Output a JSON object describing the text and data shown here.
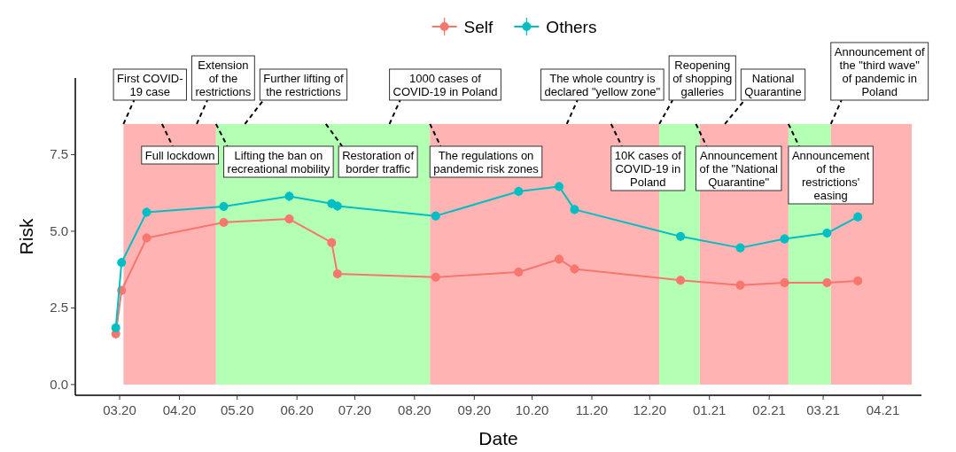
{
  "chart_data": {
    "type": "line",
    "xlabel": "Date",
    "ylabel": "Risk",
    "x": [
      "2020-02-28",
      "2020-03-02",
      "2020-03-15",
      "2020-04-24",
      "2020-05-28",
      "2020-06-19",
      "2020-06-22",
      "2020-08-12",
      "2020-09-24",
      "2020-10-15",
      "2020-10-23",
      "2020-12-17",
      "2021-01-17",
      "2021-02-09",
      "2021-03-03",
      "2021-03-19"
    ],
    "series": [
      {
        "name": "Self",
        "color": "#f8766d",
        "values": [
          1.65,
          3.07,
          4.78,
          5.29,
          5.4,
          4.63,
          3.61,
          3.5,
          3.67,
          4.09,
          3.77,
          3.4,
          3.24,
          3.32,
          3.32,
          3.38
        ],
        "errors": [
          0.15,
          0.15,
          0.15,
          0.15,
          0.15,
          0.15,
          0.15,
          0.15,
          0.15,
          0.15,
          0.15,
          0.15,
          0.15,
          0.15,
          0.15,
          0.15
        ]
      },
      {
        "name": "Others",
        "color": "#00bfc4",
        "values": [
          1.85,
          3.98,
          5.62,
          5.81,
          6.14,
          5.9,
          5.82,
          5.5,
          6.3,
          6.46,
          5.71,
          4.83,
          4.46,
          4.75,
          4.94,
          5.47
        ],
        "errors": [
          0.15,
          0.15,
          0.15,
          0.15,
          0.15,
          0.15,
          0.15,
          0.15,
          0.15,
          0.15,
          0.15,
          0.15,
          0.15,
          0.15,
          0.15,
          0.15
        ]
      }
    ],
    "xlim": [
      "2020-02-07",
      "2021-04-21"
    ],
    "xticks": [
      {
        "value": "2020-03-01",
        "label": "03.20"
      },
      {
        "value": "2020-04-01",
        "label": "04.20"
      },
      {
        "value": "2020-05-01",
        "label": "05.20"
      },
      {
        "value": "2020-06-01",
        "label": "06.20"
      },
      {
        "value": "2020-07-01",
        "label": "07.20"
      },
      {
        "value": "2020-08-01",
        "label": "08.20"
      },
      {
        "value": "2020-09-01",
        "label": "09.20"
      },
      {
        "value": "2020-10-01",
        "label": "10.20"
      },
      {
        "value": "2020-11-01",
        "label": "11.20"
      },
      {
        "value": "2020-12-01",
        "label": "12.20"
      },
      {
        "value": "2021-01-01",
        "label": "01.21"
      },
      {
        "value": "2021-02-01",
        "label": "02.21"
      },
      {
        "value": "2021-03-01",
        "label": "03.21"
      },
      {
        "value": "2021-04-01",
        "label": "04.21"
      }
    ],
    "ylim": [
      -0.35,
      10
    ],
    "yticks": [
      {
        "value": 0,
        "label": "0.0"
      },
      {
        "value": 2.5,
        "label": "2.5"
      },
      {
        "value": 5,
        "label": "5.0"
      },
      {
        "value": 7.5,
        "label": "7.5"
      }
    ],
    "grid": false,
    "legend": "top",
    "marker": "circle",
    "line_style": "solid",
    "bands": [
      {
        "axis": "x",
        "from": "2020-03-03",
        "to": "2020-04-20",
        "color": "#ffb3b3"
      },
      {
        "axis": "x",
        "from": "2020-04-20",
        "to": "2020-08-09",
        "color": "#b3ffb3"
      },
      {
        "axis": "x",
        "from": "2020-08-09",
        "to": "2020-12-06",
        "color": "#ffb3b3"
      },
      {
        "axis": "x",
        "from": "2020-12-06",
        "to": "2020-12-27",
        "color": "#b3ffb3"
      },
      {
        "axis": "x",
        "from": "2020-12-27",
        "to": "2021-02-11",
        "color": "#ffb3b3"
      },
      {
        "axis": "x",
        "from": "2021-02-11",
        "to": "2021-03-05",
        "color": "#b3ffb3"
      },
      {
        "axis": "x",
        "from": "2021-03-05",
        "to": "2021-04-16",
        "color": "#ffb3b3"
      }
    ],
    "annotations": [
      {
        "text": "First COVID-\n19 case",
        "x": "2020-03-03",
        "y": 8.5
      },
      {
        "text": "Full lockdown",
        "x": "2020-03-23",
        "y": 8.5
      },
      {
        "text": "Extension\nof the\nrestrictions",
        "x": "2020-04-10",
        "y": 8.5
      },
      {
        "text": "Lifting the ban on\nrecreational mobility",
        "x": "2020-04-20",
        "y": 8.5
      },
      {
        "text": "Further lifting of\nthe restrictions",
        "x": "2020-05-05",
        "y": 8.5
      },
      {
        "text": "Restoration of\nborder traffic",
        "x": "2020-06-16",
        "y": 8.5
      },
      {
        "text": "1000 cases of\nCOVID-19 in Poland",
        "x": "2020-07-19",
        "y": 8.5
      },
      {
        "text": "The regulations on\npandemic risk zones",
        "x": "2020-08-09",
        "y": 8.5
      },
      {
        "text": "The whole country is\ndeclared \"yellow zone\"",
        "x": "2020-10-19",
        "y": 8.5
      },
      {
        "text": "10K cases of\nCOVID-19 in\nPoland",
        "x": "2020-11-11",
        "y": 8.5
      },
      {
        "text": "Reopening\nof shopping\ngalleries",
        "x": "2020-12-06",
        "y": 8.5
      },
      {
        "text": "Announcement\nof the \"National\nQuarantine\"",
        "x": "2020-12-25",
        "y": 8.5
      },
      {
        "text": "National\nQuarantine",
        "x": "2021-01-09",
        "y": 8.5
      },
      {
        "text": "Announcement\nof the\nrestrictions'\neasing",
        "x": "2021-02-11",
        "y": 8.5
      },
      {
        "text": "Announcement of\nthe \"third wave\"\nof pandemic in\nPoland",
        "x": "2021-03-05",
        "y": 8.5
      }
    ]
  }
}
